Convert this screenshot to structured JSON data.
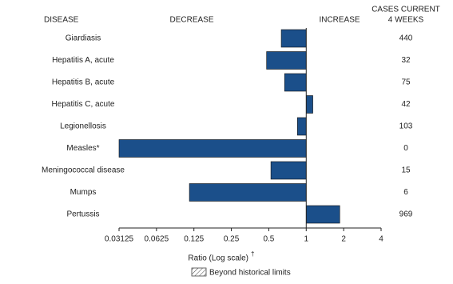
{
  "chart_data": {
    "type": "bar",
    "orientation": "horizontal",
    "column_headers": {
      "disease": "DISEASE",
      "decrease": "DECREASE",
      "increase": "INCREASE",
      "cases": [
        "CASES CURRENT",
        "4 WEEKS"
      ]
    },
    "categories": [
      "Giardiasis",
      "Hepatitis A, acute",
      "Hepatitis B, acute",
      "Hepatitis C, acute",
      "Legionellosis",
      "Measles*",
      "Meningococcal disease",
      "Mumps",
      "Pertussis"
    ],
    "values": [
      0.63,
      0.48,
      0.67,
      1.13,
      0.85,
      0.03125,
      0.52,
      0.115,
      1.86
    ],
    "cases": [
      440,
      32,
      75,
      42,
      103,
      0,
      15,
      6,
      969
    ],
    "color": "#1b4f8a",
    "baseline": 1,
    "xscale": "log",
    "xlim": [
      0.03125,
      4
    ],
    "xticks": [
      0.03125,
      0.0625,
      0.125,
      0.25,
      0.5,
      1,
      2,
      4
    ],
    "x_label": "Ratio (Log scale)",
    "x_label_note": "†",
    "legend": "Beyond historical limits"
  }
}
